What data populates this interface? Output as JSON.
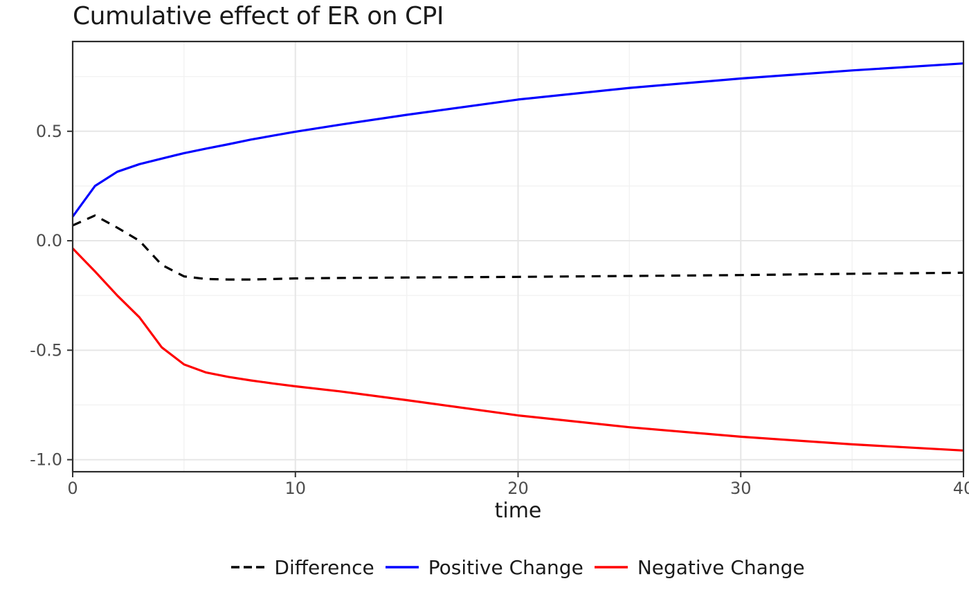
{
  "colors": {
    "difference": "#000000",
    "positive_change": "#0000FF",
    "negative_change": "#FF0000",
    "grid_major": "#E6E6E6",
    "grid_minor": "#F2F2F2",
    "panel_border": "#2B2B2B",
    "tick_mark": "#333333",
    "tick_label": "#4D4D4D",
    "text": "#1A1A1A",
    "background": "#FFFFFF"
  },
  "chart_data": {
    "type": "line",
    "title": "Cumulative effect of ER on CPI",
    "xlabel": "time",
    "ylabel": "",
    "xlim": [
      0,
      40
    ],
    "ylim": [
      -1.055,
      0.91
    ],
    "grid": "major+minor",
    "legend_position": "bottom",
    "x_ticks": [
      {
        "v": 0,
        "label": "0"
      },
      {
        "v": 10,
        "label": "10"
      },
      {
        "v": 20,
        "label": "20"
      },
      {
        "v": 30,
        "label": "30"
      },
      {
        "v": 40,
        "label": "40"
      }
    ],
    "x_minor": [
      5,
      15,
      25,
      35
    ],
    "y_ticks": [
      {
        "v": 0.5,
        "label": "0.5"
      },
      {
        "v": 0.0,
        "label": "0.0"
      },
      {
        "v": -0.5,
        "label": "-0.5"
      },
      {
        "v": -1.0,
        "label": "-1.0"
      }
    ],
    "y_minor": [
      0.75,
      0.25,
      -0.25,
      -0.75
    ],
    "series": [
      {
        "name": "Difference",
        "color": "#000000",
        "style": "dashed",
        "points": [
          [
            0,
            0.07
          ],
          [
            1,
            0.115
          ],
          [
            2,
            0.06
          ],
          [
            3,
            0.0
          ],
          [
            4,
            -0.11
          ],
          [
            5,
            -0.163
          ],
          [
            6,
            -0.175
          ],
          [
            7,
            -0.177
          ],
          [
            8,
            -0.177
          ],
          [
            9,
            -0.175
          ],
          [
            10,
            -0.172
          ],
          [
            12,
            -0.17
          ],
          [
            15,
            -0.168
          ],
          [
            20,
            -0.165
          ],
          [
            25,
            -0.161
          ],
          [
            30,
            -0.157
          ],
          [
            35,
            -0.151
          ],
          [
            40,
            -0.146
          ]
        ]
      },
      {
        "name": "Positive Change",
        "color": "#0000FF",
        "style": "solid",
        "points": [
          [
            0,
            0.11
          ],
          [
            1,
            0.25
          ],
          [
            2,
            0.315
          ],
          [
            3,
            0.35
          ],
          [
            4,
            0.375
          ],
          [
            5,
            0.4
          ],
          [
            6,
            0.421
          ],
          [
            7,
            0.441
          ],
          [
            8,
            0.462
          ],
          [
            9,
            0.48
          ],
          [
            10,
            0.498
          ],
          [
            12,
            0.53
          ],
          [
            15,
            0.575
          ],
          [
            20,
            0.645
          ],
          [
            25,
            0.698
          ],
          [
            30,
            0.741
          ],
          [
            35,
            0.778
          ],
          [
            40,
            0.81
          ]
        ]
      },
      {
        "name": "Negative Change",
        "color": "#FF0000",
        "style": "solid",
        "points": [
          [
            0,
            -0.035
          ],
          [
            1,
            -0.14
          ],
          [
            2,
            -0.25
          ],
          [
            3,
            -0.35
          ],
          [
            4,
            -0.487
          ],
          [
            5,
            -0.565
          ],
          [
            6,
            -0.602
          ],
          [
            7,
            -0.622
          ],
          [
            8,
            -0.638
          ],
          [
            9,
            -0.652
          ],
          [
            10,
            -0.665
          ],
          [
            12,
            -0.688
          ],
          [
            15,
            -0.728
          ],
          [
            20,
            -0.798
          ],
          [
            25,
            -0.852
          ],
          [
            30,
            -0.895
          ],
          [
            35,
            -0.93
          ],
          [
            40,
            -0.958
          ]
        ]
      }
    ]
  }
}
